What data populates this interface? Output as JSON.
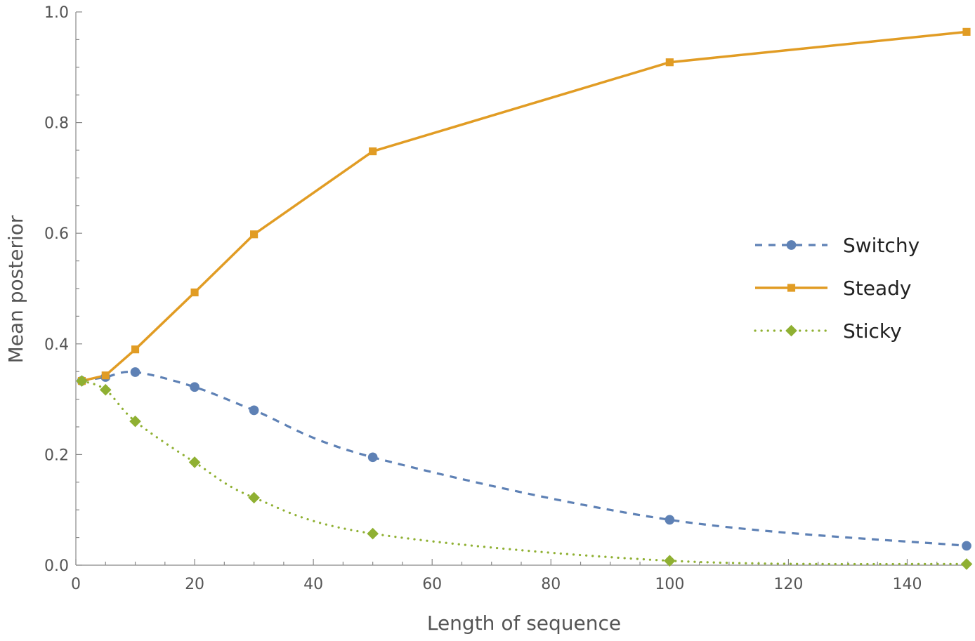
{
  "chart_data": {
    "type": "line",
    "title": "",
    "xlabel": "Length of sequence",
    "ylabel": "Mean posterior",
    "xlim": [
      0,
      150
    ],
    "ylim": [
      0,
      1.0
    ],
    "grid": false,
    "legend_position": "right",
    "x_ticks": [
      0,
      20,
      40,
      60,
      80,
      100,
      120,
      140
    ],
    "x_tick_labels": [
      "0",
      "20",
      "40",
      "60",
      "80",
      "100",
      "120",
      "140"
    ],
    "y_ticks": [
      0,
      0.2,
      0.4,
      0.6,
      0.8,
      1.0
    ],
    "y_tick_labels": [
      "0.0",
      "0.2",
      "0.4",
      "0.6",
      "0.8",
      "1.0"
    ],
    "x": [
      1,
      5,
      10,
      20,
      30,
      50,
      100,
      150
    ],
    "series": [
      {
        "name": "Switchy",
        "color": "#5e81b5",
        "line_style": "dashed",
        "marker": "circle",
        "values": [
          0.333,
          0.34,
          0.349,
          0.322,
          0.28,
          0.195,
          0.082,
          0.035
        ]
      },
      {
        "name": "Steady",
        "color": "#e19c24",
        "line_style": "solid",
        "marker": "square",
        "values": [
          0.333,
          0.343,
          0.39,
          0.493,
          0.598,
          0.748,
          0.909,
          0.964
        ]
      },
      {
        "name": "Sticky",
        "color": "#8fb032",
        "line_style": "dotted",
        "marker": "diamond",
        "values": [
          0.333,
          0.317,
          0.26,
          0.186,
          0.122,
          0.057,
          0.008,
          0.002
        ]
      }
    ]
  }
}
